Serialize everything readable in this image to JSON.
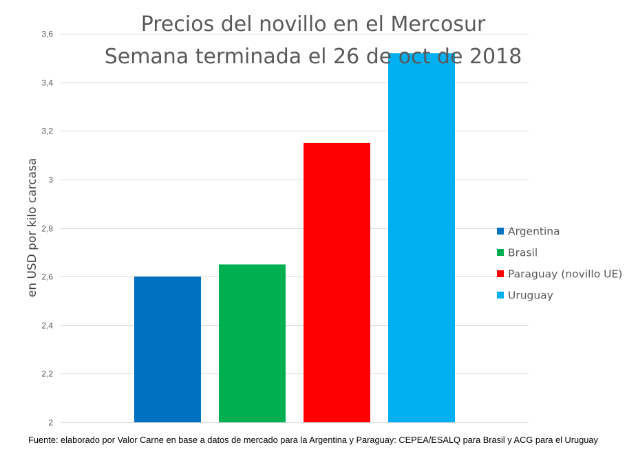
{
  "chart_data": {
    "type": "bar",
    "title": [
      "Precios del novillo en el Mercosur",
      "Semana terminada  el 26 de oct de 2018"
    ],
    "xlabel": "",
    "ylabel": "en USD por kilo carcasa",
    "ylim": [
      2,
      3.6
    ],
    "yticks": [
      {
        "value": 2,
        "label": "2"
      },
      {
        "value": 2.2,
        "label": "2,2"
      },
      {
        "value": 2.4,
        "label": "2,4"
      },
      {
        "value": 2.6,
        "label": "2,6"
      },
      {
        "value": 2.8,
        "label": "2,8"
      },
      {
        "value": 3,
        "label": "3"
      },
      {
        "value": 3.2,
        "label": "3,2"
      },
      {
        "value": 3.4,
        "label": "3,4"
      },
      {
        "value": 3.6,
        "label": "3,6"
      }
    ],
    "gridlines": true,
    "legend_position": "right",
    "series": [
      {
        "name": "Argentina",
        "value": 2.6,
        "color": "#0070c0"
      },
      {
        "name": "Brasil",
        "value": 2.65,
        "color": "#00b050"
      },
      {
        "name": "Paraguay (novillo UE)",
        "value": 3.15,
        "color": "#ff0000"
      },
      {
        "name": "Uruguay",
        "value": 3.52,
        "color": "#00b0f0"
      }
    ]
  },
  "footer": "Fuente: elaborado por Valor Carne en base a datos de mercado para la Argentina y Paraguay: CEPEA/ESALQ para Brasil y ACG para el Uruguay"
}
